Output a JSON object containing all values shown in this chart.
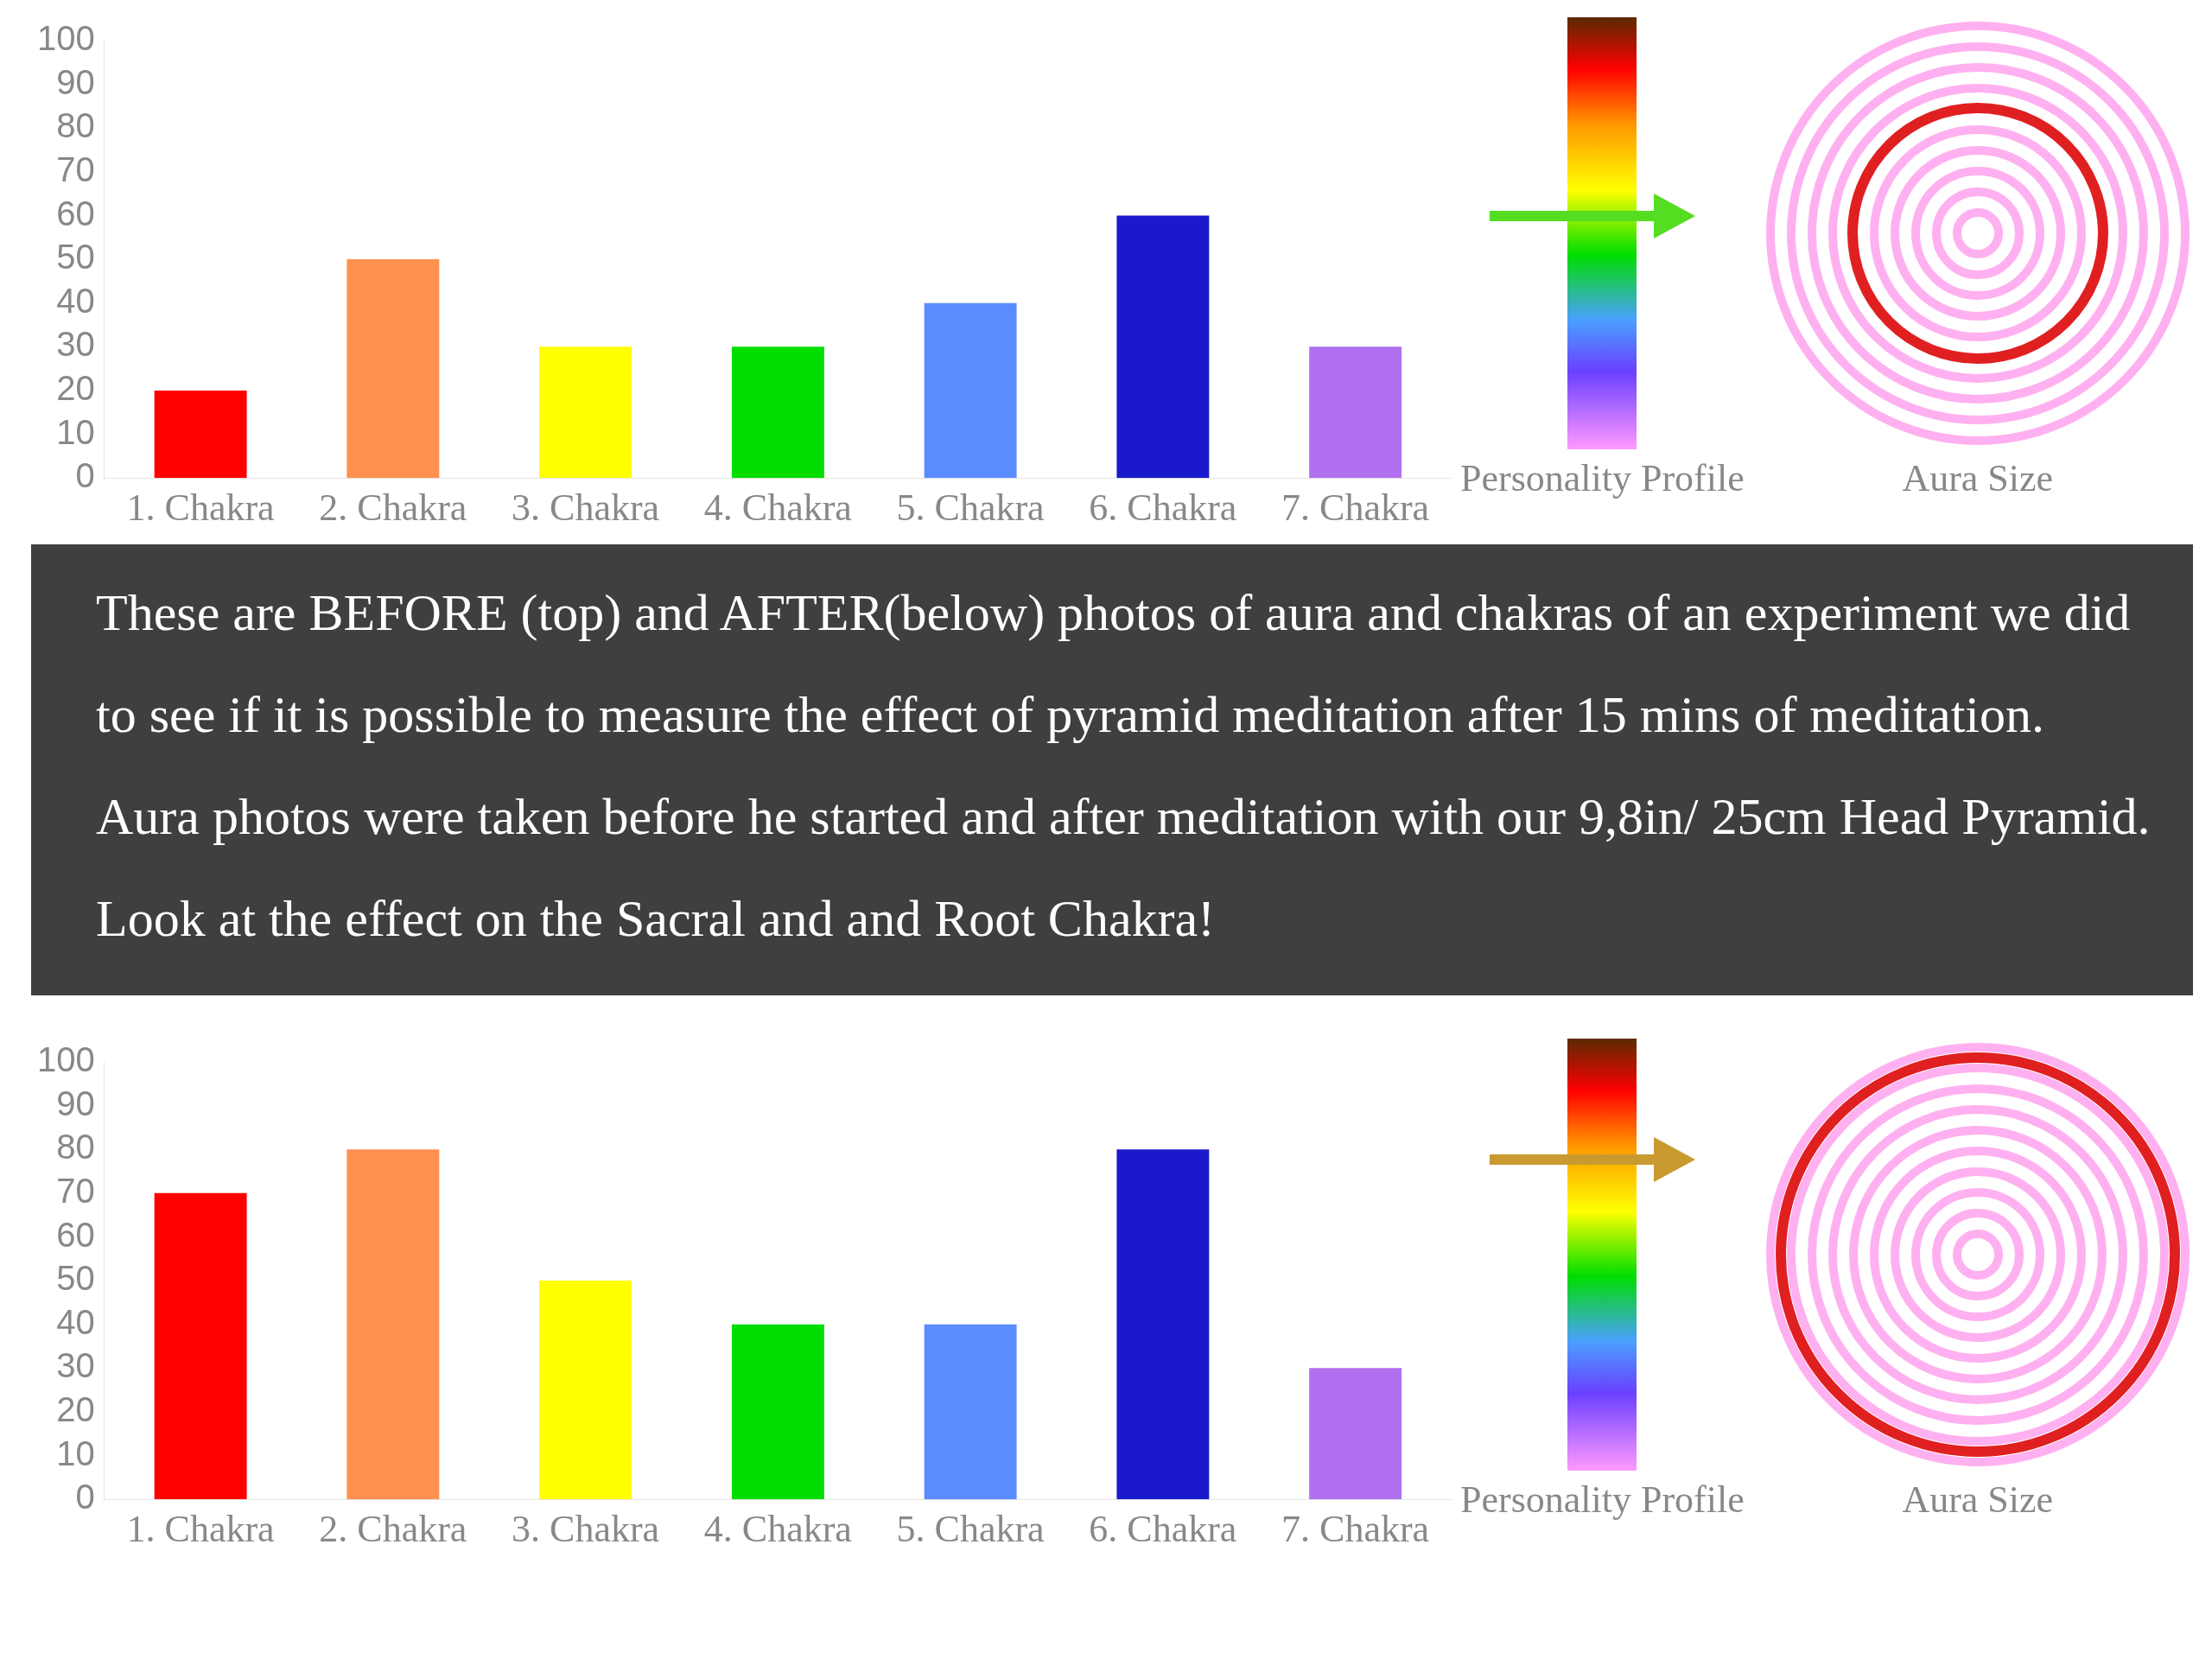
{
  "chart_data": [
    {
      "type": "bar",
      "categories": [
        "1. Chakra",
        "2. Chakra",
        "3. Chakra",
        "4. Chakra",
        "5. Chakra",
        "6. Chakra",
        "7. Chakra"
      ],
      "values": [
        20,
        50,
        30,
        30,
        40,
        60,
        30
      ],
      "colors": [
        "#ff0000",
        "#ff9050",
        "#ffff00",
        "#00dd00",
        "#5a8cff",
        "#1a1acc",
        "#b070f0"
      ],
      "ylim": [
        0,
        100
      ],
      "yticks": [
        0,
        10,
        20,
        30,
        40,
        50,
        60,
        70,
        80,
        90,
        100
      ],
      "grid": false,
      "annotations": [
        "Personality Profile",
        "Aura Size"
      ]
    },
    {
      "type": "other",
      "annotations": [
        "These are BEFORE (top) and AFTER(below) photos of aura and chakras of an experiment we did to see if it is possible to measure the effect of pyramid meditation after 15 mins of meditation.",
        "Aura photos were taken before he started and after meditation with our 9,8in/ 25cm Head Pyramid. Look at the effect on the Sacral and and Root Chakra!"
      ]
    },
    {
      "type": "bar",
      "categories": [
        "1. Chakra",
        "2. Chakra",
        "3. Chakra",
        "4. Chakra",
        "5. Chakra",
        "6. Chakra",
        "7. Chakra"
      ],
      "values": [
        70,
        80,
        50,
        40,
        40,
        80,
        30
      ],
      "colors": [
        "#ff0000",
        "#ff9050",
        "#ffff00",
        "#00dd00",
        "#5a8cff",
        "#1a1acc",
        "#b070f0"
      ],
      "ylim": [
        0,
        100
      ],
      "yticks": [
        0,
        10,
        20,
        30,
        40,
        50,
        60,
        70,
        80,
        90,
        100
      ],
      "grid": false,
      "annotations": [
        "Personality Profile",
        "Aura Size"
      ]
    }
  ]
}
